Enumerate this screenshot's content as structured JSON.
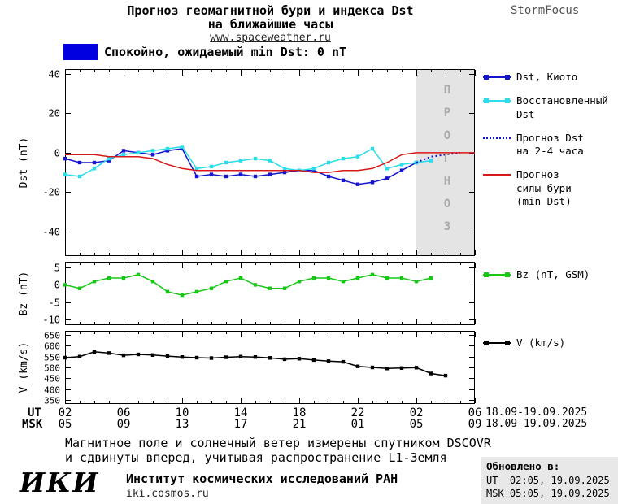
{
  "header": {
    "title_line1": "Прогноз геомагнитной бури и индекса Dst",
    "title_line2": "на ближайшие часы",
    "site": "www.spaceweather.ru",
    "brand": "StormFocus"
  },
  "status": {
    "label": "Спокойно, ожидаемый min Dst: 0 nT",
    "color": "#0000e0"
  },
  "chart_data": [
    {
      "type": "line",
      "name": "dst",
      "ylabel": "Dst (nT)",
      "xlim": [
        2,
        30
      ],
      "ylim": [
        -52,
        42
      ],
      "yticks": [
        40,
        20,
        0,
        -20,
        -40
      ],
      "x_unit": "hour, UT 18.09-19.09.2025",
      "forecast_shade_x": [
        26,
        30
      ],
      "forecast_label": "ПРОГНОЗ",
      "series": [
        {
          "name": "Dst, Киото",
          "color": "#1515cc",
          "marker": "square",
          "style": "solid",
          "x": [
            2,
            3,
            4,
            5,
            6,
            7,
            8,
            9,
            10,
            11,
            12,
            13,
            14,
            15,
            16,
            17,
            18,
            19,
            20,
            21,
            22,
            23,
            24,
            25,
            26
          ],
          "values": [
            -3,
            -5,
            -5,
            -4,
            1,
            0,
            -1,
            1,
            2,
            -12,
            -11,
            -12,
            -11,
            -12,
            -11,
            -10,
            -9,
            -9,
            -12,
            -14,
            -16,
            -15,
            -13,
            -9,
            -5
          ]
        },
        {
          "name": "Восстановленный Dst",
          "color": "#2adde8",
          "marker": "square",
          "style": "solid",
          "x": [
            2,
            3,
            4,
            5,
            6,
            7,
            8,
            9,
            10,
            11,
            12,
            13,
            14,
            15,
            16,
            17,
            18,
            19,
            20,
            21,
            22,
            23,
            24,
            25,
            26,
            27
          ],
          "values": [
            -11,
            -12,
            -8,
            -3,
            -1,
            0,
            1,
            2,
            3,
            -8,
            -7,
            -5,
            -4,
            -3,
            -4,
            -8,
            -9,
            -8,
            -5,
            -3,
            -2,
            2,
            -8,
            -6,
            -5,
            -4
          ]
        },
        {
          "name": "Прогноз Dst на 2-4 часа",
          "color": "#1515cc",
          "marker": null,
          "style": "dotted",
          "x": [
            26,
            27,
            28,
            29
          ],
          "values": [
            -5,
            -2,
            -1,
            0
          ]
        },
        {
          "name": "Прогноз силы бури (min Dst)",
          "color": "#d81818",
          "marker": null,
          "style": "solid",
          "x": [
            2,
            3,
            4,
            5,
            6,
            7,
            8,
            9,
            10,
            11,
            12,
            13,
            14,
            15,
            16,
            17,
            18,
            19,
            20,
            21,
            22,
            23,
            24,
            25,
            26,
            27,
            28,
            29,
            30
          ],
          "values": [
            -1,
            -1,
            -1,
            -2,
            -2,
            -2,
            -3,
            -6,
            -8,
            -9,
            -9,
            -9,
            -9,
            -9,
            -9,
            -9,
            -9,
            -10,
            -10,
            -9,
            -9,
            -8,
            -5,
            -1,
            0,
            0,
            0,
            0,
            0
          ]
        }
      ]
    },
    {
      "type": "line",
      "name": "bz",
      "ylabel": "Bz (nT)",
      "xlim": [
        2,
        30
      ],
      "ylim": [
        -11.5,
        6.5
      ],
      "yticks": [
        5,
        0,
        -5,
        -10
      ],
      "series": [
        {
          "name": "Bz (nT, GSM)",
          "color": "#18c818",
          "marker": "square",
          "style": "solid",
          "x": [
            2,
            3,
            4,
            5,
            6,
            7,
            8,
            9,
            10,
            11,
            12,
            13,
            14,
            15,
            16,
            17,
            18,
            19,
            20,
            21,
            22,
            23,
            24,
            25,
            26,
            27
          ],
          "values": [
            0,
            -1,
            1,
            2,
            2,
            3,
            1,
            -2,
            -3,
            -2,
            -1,
            1,
            2,
            0,
            -1,
            -1,
            1,
            2,
            2,
            1,
            2,
            3,
            2,
            2,
            1,
            2
          ]
        }
      ]
    },
    {
      "type": "line",
      "name": "v",
      "ylabel": "V (km/s)",
      "xlim": [
        2,
        30
      ],
      "ylim": [
        335,
        665
      ],
      "yticks": [
        650,
        600,
        550,
        500,
        450,
        400,
        350
      ],
      "series": [
        {
          "name": "V (km/s)",
          "color": "#000000",
          "marker": "square",
          "style": "solid",
          "x": [
            2,
            3,
            4,
            5,
            6,
            7,
            8,
            9,
            10,
            11,
            12,
            13,
            14,
            15,
            16,
            17,
            18,
            19,
            20,
            21,
            22,
            23,
            24,
            25,
            26,
            27,
            28
          ],
          "values": [
            545,
            550,
            572,
            566,
            556,
            560,
            557,
            552,
            548,
            545,
            543,
            547,
            550,
            548,
            544,
            538,
            540,
            534,
            529,
            526,
            505,
            500,
            495,
            497,
            499,
            472,
            462
          ]
        }
      ]
    }
  ],
  "xaxis": {
    "ut_label": "UT",
    "msk_label": "MSK",
    "tick_hours": [
      2,
      6,
      10,
      14,
      18,
      22,
      26,
      30
    ],
    "ut_ticks": [
      "02",
      "06",
      "10",
      "14",
      "18",
      "22",
      "02",
      "06"
    ],
    "msk_ticks": [
      "05",
      "09",
      "13",
      "17",
      "21",
      "01",
      "05",
      "09"
    ],
    "date_range": "18.09-19.09.2025"
  },
  "legend": {
    "dst": [
      {
        "label": "Dst, Киото",
        "color": "#1515cc",
        "style": "solid",
        "marker": true
      },
      {
        "label": "Восстановленный\nDst",
        "color": "#2adde8",
        "style": "solid",
        "marker": true
      },
      {
        "label": "Прогноз Dst\nна 2-4 часа",
        "color": "#1515cc",
        "style": "dotted",
        "marker": false
      },
      {
        "label": "Прогноз\nсилы бури\n(min Dst)",
        "color": "#d81818",
        "style": "solid",
        "marker": false
      }
    ],
    "bz": [
      {
        "label": "Bz (nT, GSM)",
        "color": "#18c818",
        "style": "solid",
        "marker": true
      }
    ],
    "v": [
      {
        "label": "V (km/s)",
        "color": "#000000",
        "style": "solid",
        "marker": true
      }
    ]
  },
  "footer": {
    "note_line1": "Магнитное поле и солнечный ветер измерены спутником DSCOVR",
    "note_line2": "и сдвинуты вперед, учитывая распространение L1-Земля",
    "logo": "ИКИ",
    "institute": "Институт космических исследований РАН",
    "institute_site": "iki.cosmos.ru",
    "updated_label": "Обновлено в:",
    "updated_ut": "UT  02:05, 19.09.2025",
    "updated_msk": "MSK 05:05, 19.09.2025"
  }
}
